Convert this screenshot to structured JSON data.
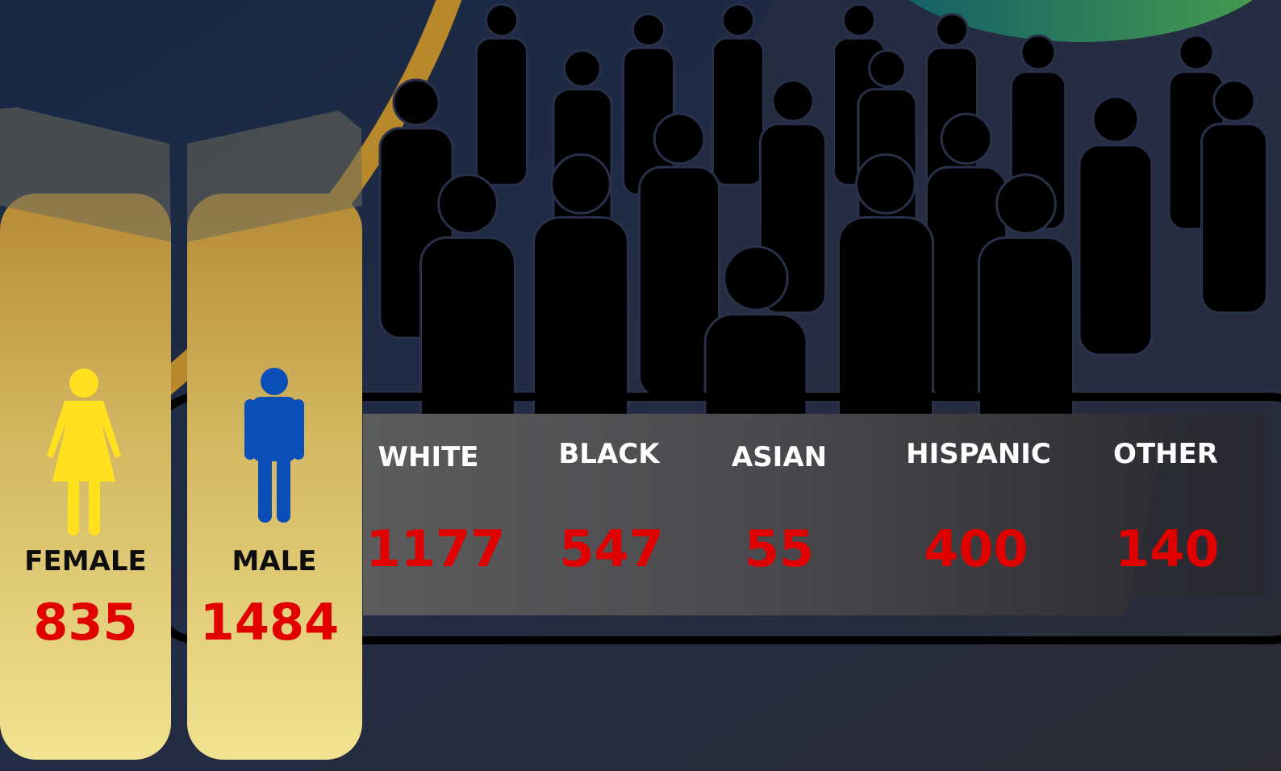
{
  "gender": [
    {
      "label": "FEMALE",
      "count": 835
    },
    {
      "label": "MALE",
      "count": 1484
    }
  ],
  "ethnicity": [
    {
      "label": "WHITE",
      "count": 1177
    },
    {
      "label": "BLACK",
      "count": 547
    },
    {
      "label": "ASIAN",
      "count": 55
    },
    {
      "label": "HISPANIC",
      "count": 400
    },
    {
      "label": "OTHER",
      "count": 140
    }
  ]
}
